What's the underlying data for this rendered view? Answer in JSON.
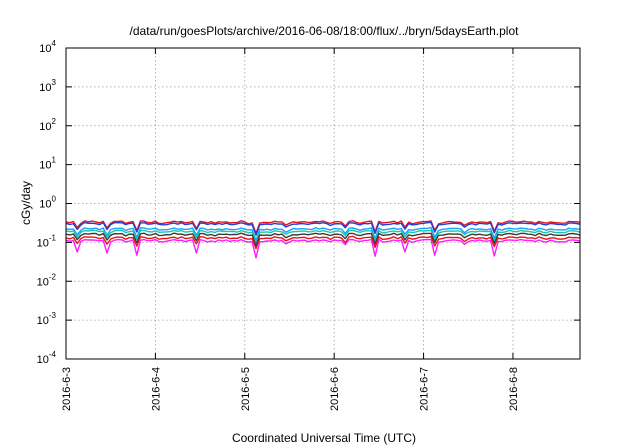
{
  "chart_data": {
    "type": "line",
    "title": "/data/run/goesPlots/archive/2016-06-08/18:00/flux/../bryn/5daysEarth.plot",
    "xlabel": "Coordinated Universal Time (UTC)",
    "ylabel": "cGy/day",
    "yscale": "log",
    "ylim": [
      0.0001,
      10000
    ],
    "xlim": [
      "2016-06-03T00:00",
      "2016-06-08T18:00"
    ],
    "grid": true,
    "y_ticks": [
      {
        "base": "10",
        "exp": "-4",
        "value": 0.0001
      },
      {
        "base": "10",
        "exp": "-3",
        "value": 0.001
      },
      {
        "base": "10",
        "exp": "-2",
        "value": 0.01
      },
      {
        "base": "10",
        "exp": "-1",
        "value": 0.1
      },
      {
        "base": "10",
        "exp": "0",
        "value": 1
      },
      {
        "base": "10",
        "exp": "1",
        "value": 10
      },
      {
        "base": "10",
        "exp": "2",
        "value": 100
      },
      {
        "base": "10",
        "exp": "3",
        "value": 1000
      },
      {
        "base": "10",
        "exp": "4",
        "value": 10000
      }
    ],
    "x_ticks": [
      {
        "label": "2016-6-3",
        "value": "2016-06-03T00:00"
      },
      {
        "label": "2016-6-4",
        "value": "2016-06-04T00:00"
      },
      {
        "label": "2016-6-5",
        "value": "2016-06-05T00:00"
      },
      {
        "label": "2016-6-6",
        "value": "2016-06-06T00:00"
      },
      {
        "label": "2016-6-7",
        "value": "2016-06-07T00:00"
      },
      {
        "label": "2016-6-8",
        "value": "2016-06-08T00:00"
      }
    ],
    "sample_interval_hours": 1,
    "series": [
      {
        "color": "#e8141c",
        "base": 0.33,
        "values": []
      },
      {
        "color": "#1f3fd6",
        "base": 0.3,
        "values": []
      },
      {
        "color": "#1aa0ff",
        "base": 0.22,
        "values": []
      },
      {
        "color": "#16c8a8",
        "base": 0.19,
        "values": []
      },
      {
        "color": "#3a3a3a",
        "base": 0.16,
        "values": []
      },
      {
        "color": "#e8141c",
        "base": 0.13,
        "values": []
      },
      {
        "color": "#ff1aff",
        "base": 0.11,
        "values": []
      }
    ]
  }
}
